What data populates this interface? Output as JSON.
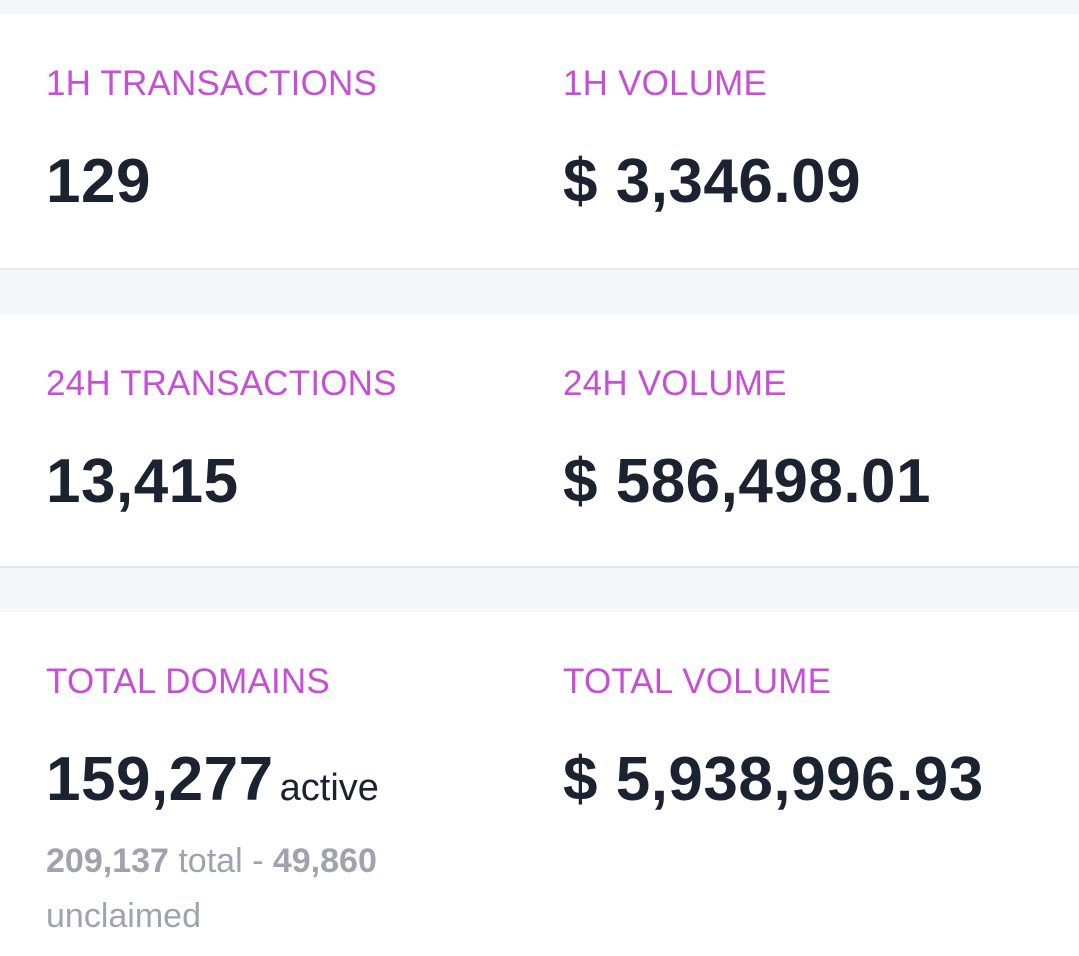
{
  "stats": {
    "row1": {
      "left": {
        "label": "1H TRANSACTIONS",
        "value": "129"
      },
      "right": {
        "label": "1H VOLUME",
        "value": "$ 3,346.09"
      }
    },
    "row2": {
      "left": {
        "label": "24H TRANSACTIONS",
        "value": "13,415"
      },
      "right": {
        "label": "24H VOLUME",
        "value": "$ 586,498.01"
      }
    },
    "row3": {
      "left": {
        "label": "TOTAL DOMAINS",
        "value": "159,277",
        "value_suffix": "active",
        "total_count": "209,137",
        "total_label": "total -",
        "unclaimed_count": "49,860",
        "unclaimed_label": "unclaimed"
      },
      "right": {
        "label": "TOTAL VOLUME",
        "value": "$ 5,938,996.93"
      }
    }
  },
  "colors": {
    "label": "#c64fd6",
    "value": "#1c2330",
    "muted": "#9ea3ad",
    "background": "#f6f7f9",
    "card": "#ffffff"
  }
}
